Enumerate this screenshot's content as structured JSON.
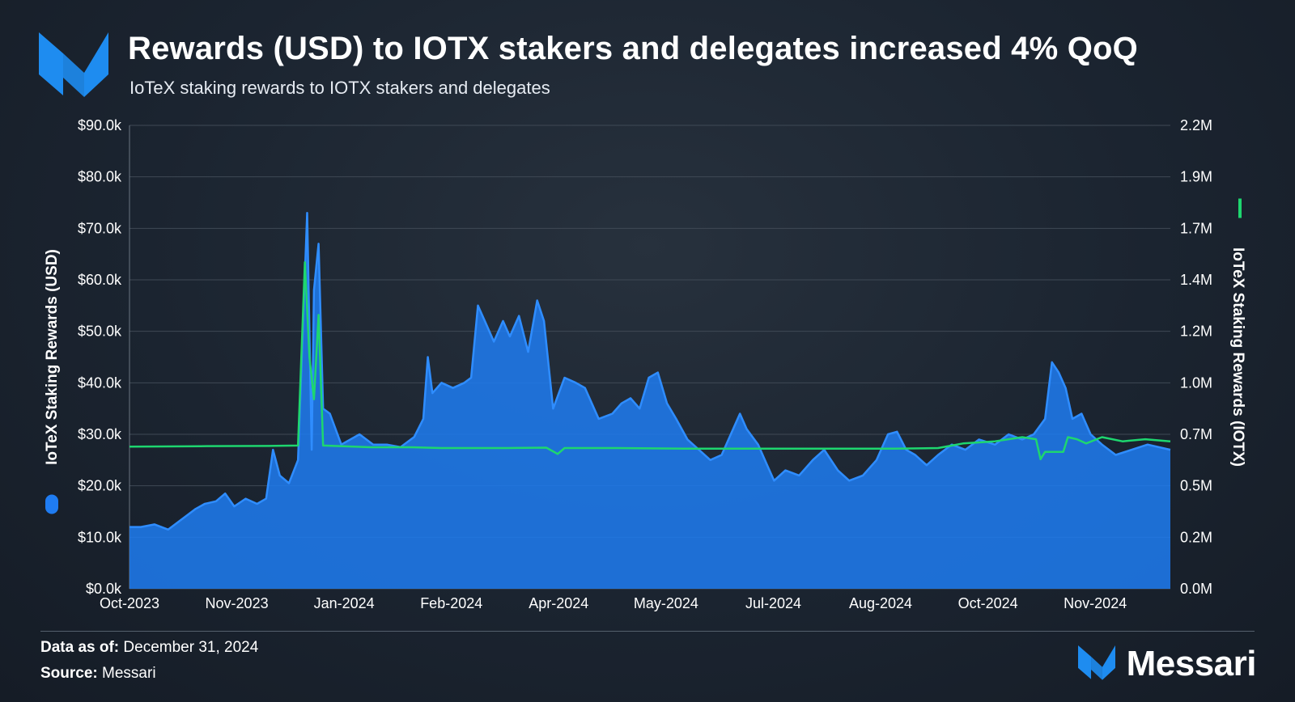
{
  "header": {
    "title": "Rewards (USD) to IOTX stakers and delegates increased 4% QoQ",
    "subtitle": "IoTeX staking rewards to IOTX stakers and delegates"
  },
  "footer": {
    "data_as_of_label": "Data as of:",
    "data_as_of_value": "December 31, 2024",
    "source_label": "Source:",
    "source_value": "Messari",
    "brand": "Messari"
  },
  "colors": {
    "usd_area": "#1f7cf2",
    "iotx_line": "#1ed66f",
    "grid": "#3f4955",
    "text": "#ffffff"
  },
  "chart_data": {
    "type": "area",
    "x_ticks": [
      "Oct-2023",
      "Nov-2023",
      "Jan-2024",
      "Feb-2024",
      "Apr-2024",
      "May-2024",
      "Jul-2024",
      "Aug-2024",
      "Oct-2024",
      "Nov-2024"
    ],
    "x_range": [
      "2023-10-01",
      "2024-12-31"
    ],
    "y_left": {
      "label": "IoTeX Staking Rewards (USD)",
      "ticks": [
        "$0.0k",
        "$10.0k",
        "$20.0k",
        "$30.0k",
        "$40.0k",
        "$50.0k",
        "$60.0k",
        "$70.0k",
        "$80.0k",
        "$90.0k"
      ],
      "range": [
        0,
        90000
      ]
    },
    "y_right": {
      "label": "IoTeX Staking Rewards (IOTX)",
      "ticks": [
        "0.0M",
        "0.2M",
        "0.5M",
        "0.7M",
        "1.0M",
        "1.2M",
        "1.4M",
        "1.7M",
        "1.9M",
        "2.2M"
      ],
      "range": [
        0,
        2200000
      ]
    },
    "grid": true,
    "legend": [
      {
        "name": "IoTeX Staking Rewards (USD)",
        "position": "left-axis"
      },
      {
        "name": "IoTeX Staking Rewards (IOTX)",
        "position": "right-axis"
      }
    ],
    "series": [
      {
        "name": "IoTeX Staking Rewards (USD)",
        "type": "area",
        "axis": "left",
        "points": [
          [
            "2023-10-01",
            12000
          ],
          [
            "2023-10-06",
            12000
          ],
          [
            "2023-10-12",
            12500
          ],
          [
            "2023-10-18",
            11500
          ],
          [
            "2023-10-24",
            13500
          ],
          [
            "2023-10-30",
            15500
          ],
          [
            "2023-11-03",
            16500
          ],
          [
            "2023-11-08",
            17000
          ],
          [
            "2023-11-12",
            18500
          ],
          [
            "2023-11-16",
            16000
          ],
          [
            "2023-11-21",
            17500
          ],
          [
            "2023-11-26",
            16500
          ],
          [
            "2023-11-30",
            17500
          ],
          [
            "2023-12-03",
            27000
          ],
          [
            "2023-12-06",
            22000
          ],
          [
            "2023-12-10",
            20500
          ],
          [
            "2023-12-14",
            25000
          ],
          [
            "2023-12-18",
            73000
          ],
          [
            "2023-12-20",
            27000
          ],
          [
            "2023-12-21",
            58000
          ],
          [
            "2023-12-23",
            67000
          ],
          [
            "2023-12-25",
            35000
          ],
          [
            "2023-12-28",
            34000
          ],
          [
            "2024-01-02",
            28000
          ],
          [
            "2024-01-10",
            30000
          ],
          [
            "2024-01-16",
            28000
          ],
          [
            "2024-01-22",
            28000
          ],
          [
            "2024-01-28",
            27500
          ],
          [
            "2024-02-03",
            29500
          ],
          [
            "2024-02-07",
            33000
          ],
          [
            "2024-02-09",
            45000
          ],
          [
            "2024-02-11",
            38000
          ],
          [
            "2024-02-15",
            40000
          ],
          [
            "2024-02-20",
            39000
          ],
          [
            "2024-02-25",
            40000
          ],
          [
            "2024-02-28",
            41000
          ],
          [
            "2024-03-02",
            55000
          ],
          [
            "2024-03-05",
            52000
          ],
          [
            "2024-03-09",
            48000
          ],
          [
            "2024-03-13",
            52000
          ],
          [
            "2024-03-16",
            49000
          ],
          [
            "2024-03-20",
            53000
          ],
          [
            "2024-03-24",
            46000
          ],
          [
            "2024-03-28",
            56000
          ],
          [
            "2024-03-31",
            52000
          ],
          [
            "2024-04-04",
            35000
          ],
          [
            "2024-04-09",
            41000
          ],
          [
            "2024-04-14",
            40000
          ],
          [
            "2024-04-18",
            39000
          ],
          [
            "2024-04-24",
            33000
          ],
          [
            "2024-04-30",
            34000
          ],
          [
            "2024-05-04",
            36000
          ],
          [
            "2024-05-08",
            37000
          ],
          [
            "2024-05-12",
            35000
          ],
          [
            "2024-05-16",
            41000
          ],
          [
            "2024-05-20",
            42000
          ],
          [
            "2024-05-24",
            36000
          ],
          [
            "2024-05-28",
            33000
          ],
          [
            "2024-06-02",
            29000
          ],
          [
            "2024-06-07",
            27000
          ],
          [
            "2024-06-12",
            25000
          ],
          [
            "2024-06-17",
            26000
          ],
          [
            "2024-06-21",
            30000
          ],
          [
            "2024-06-25",
            34000
          ],
          [
            "2024-06-28",
            31000
          ],
          [
            "2024-07-03",
            28000
          ],
          [
            "2024-07-07",
            24000
          ],
          [
            "2024-07-10",
            21000
          ],
          [
            "2024-07-15",
            23000
          ],
          [
            "2024-07-21",
            22000
          ],
          [
            "2024-07-27",
            25000
          ],
          [
            "2024-08-01",
            27000
          ],
          [
            "2024-08-07",
            23000
          ],
          [
            "2024-08-12",
            21000
          ],
          [
            "2024-08-18",
            22000
          ],
          [
            "2024-08-24",
            25000
          ],
          [
            "2024-08-29",
            30000
          ],
          [
            "2024-09-02",
            30500
          ],
          [
            "2024-09-06",
            27000
          ],
          [
            "2024-09-10",
            26000
          ],
          [
            "2024-09-15",
            24000
          ],
          [
            "2024-09-20",
            26000
          ],
          [
            "2024-09-26",
            28000
          ],
          [
            "2024-10-02",
            27000
          ],
          [
            "2024-10-08",
            29000
          ],
          [
            "2024-10-15",
            28000
          ],
          [
            "2024-10-21",
            30000
          ],
          [
            "2024-10-27",
            29000
          ],
          [
            "2024-11-01",
            30000
          ],
          [
            "2024-11-06",
            33000
          ],
          [
            "2024-11-09",
            44000
          ],
          [
            "2024-11-12",
            42000
          ],
          [
            "2024-11-15",
            39000
          ],
          [
            "2024-11-18",
            33000
          ],
          [
            "2024-11-22",
            34000
          ],
          [
            "2024-11-26",
            30000
          ],
          [
            "2024-12-01",
            28000
          ],
          [
            "2024-12-07",
            26000
          ],
          [
            "2024-12-14",
            27000
          ],
          [
            "2024-12-21",
            28000
          ],
          [
            "2024-12-31",
            27000
          ]
        ]
      },
      {
        "name": "IoTeX Staking Rewards (IOTX)",
        "type": "line",
        "axis": "right",
        "points": [
          [
            "2023-10-01",
            675000
          ],
          [
            "2023-11-01",
            677000
          ],
          [
            "2023-12-01",
            678000
          ],
          [
            "2023-12-14",
            680000
          ],
          [
            "2023-12-17",
            1550000
          ],
          [
            "2023-12-19",
            1100000
          ],
          [
            "2023-12-21",
            900000
          ],
          [
            "2023-12-23",
            1300000
          ],
          [
            "2023-12-25",
            680000
          ],
          [
            "2024-01-15",
            672000
          ],
          [
            "2024-02-01",
            672000
          ],
          [
            "2024-02-15",
            668000
          ],
          [
            "2024-03-15",
            668000
          ],
          [
            "2024-04-01",
            670000
          ],
          [
            "2024-04-06",
            640000
          ],
          [
            "2024-04-09",
            668000
          ],
          [
            "2024-05-01",
            668000
          ],
          [
            "2024-06-01",
            665000
          ],
          [
            "2024-07-01",
            665000
          ],
          [
            "2024-08-01",
            665000
          ],
          [
            "2024-09-01",
            665000
          ],
          [
            "2024-09-20",
            668000
          ],
          [
            "2024-10-01",
            690000
          ],
          [
            "2024-10-15",
            700000
          ],
          [
            "2024-10-27",
            720000
          ],
          [
            "2024-11-02",
            710000
          ],
          [
            "2024-11-04",
            615000
          ],
          [
            "2024-11-06",
            650000
          ],
          [
            "2024-11-14",
            650000
          ],
          [
            "2024-11-16",
            720000
          ],
          [
            "2024-11-20",
            710000
          ],
          [
            "2024-11-24",
            690000
          ],
          [
            "2024-12-01",
            720000
          ],
          [
            "2024-12-10",
            700000
          ],
          [
            "2024-12-20",
            710000
          ],
          [
            "2024-12-31",
            700000
          ]
        ]
      }
    ]
  }
}
